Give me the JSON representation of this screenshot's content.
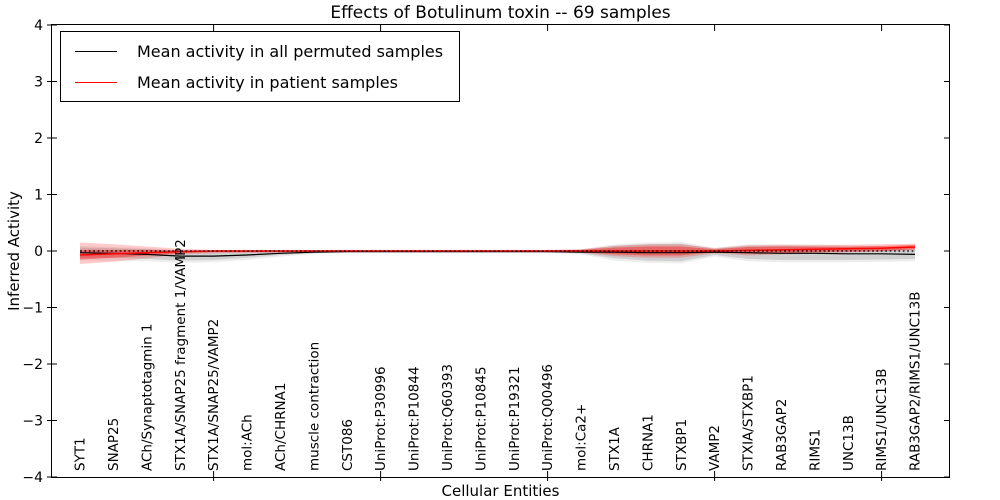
{
  "figure": {
    "title": "Effects of Botulinum toxin -- 69 samples",
    "xlabel": "Cellular Entities",
    "ylabel": "Inferred Activity"
  },
  "chart_data": {
    "type": "line",
    "title": "Effects of Botulinum toxin -- 69 samples",
    "xlabel": "Cellular Entities",
    "ylabel": "Inferred Activity",
    "ylim": [
      -4,
      4
    ],
    "ytick_values": [
      4,
      3,
      2,
      1,
      0,
      -1,
      -2,
      -3,
      -4
    ],
    "ytick_labels": [
      "4",
      "3",
      "2",
      "1",
      "0",
      "−1",
      "−2",
      "−3",
      "−4"
    ],
    "xticks_at_category_index": [
      4,
      9,
      14,
      19,
      24
    ],
    "grid": false,
    "legend_position": "upper left",
    "categories": [
      "SYT1",
      "SNAP25",
      "ACh/Synaptotagmin 1",
      "STX1A/SNAP25 fragment 1/VAMP2",
      "STX1A/SNAP25/VAMP2",
      "mol:ACh",
      "ACh/CHRNA1",
      "muscle contraction",
      "CST086",
      "UniProt:P30996",
      "UniProt:P10844",
      "UniProt:Q60393",
      "UniProt:P10845",
      "UniProt:P19321",
      "UniProt:Q00496",
      "mol:Ca2+",
      "STX1A",
      "CHRNA1",
      "STXBP1",
      "VAMP2",
      "STXIA/STXBP1",
      "RAB3GAP2",
      "RIMS1",
      "UNC13B",
      "RIMS1/UNC13B",
      "RAB3GAP2/RIMS1/UNC13B"
    ],
    "series": [
      {
        "name": "Mean activity in all permuted samples",
        "color": "#000000",
        "width": 1.2,
        "values": [
          -0.03,
          -0.04,
          -0.06,
          -0.09,
          -0.09,
          -0.07,
          -0.04,
          -0.02,
          -0.01,
          -0.01,
          -0.01,
          -0.01,
          -0.01,
          -0.01,
          -0.01,
          -0.02,
          -0.02,
          -0.03,
          -0.03,
          -0.02,
          -0.03,
          -0.04,
          -0.04,
          -0.05,
          -0.05,
          -0.06
        ]
      },
      {
        "name": "Mean activity in patient samples",
        "color": "#ff0000",
        "width": 1.5,
        "values": [
          -0.07,
          -0.05,
          -0.03,
          -0.01,
          0,
          0,
          0,
          0,
          0,
          0,
          0,
          0,
          0,
          0,
          0,
          0,
          0,
          0,
          0,
          0,
          0.01,
          0.02,
          0.03,
          0.04,
          0.05,
          0.07
        ]
      }
    ],
    "bands": [
      {
        "name": "permuted-ci-outer",
        "color": "#000000",
        "opacity": 0.07,
        "low": [
          -0.17,
          -0.17,
          -0.18,
          -0.21,
          -0.2,
          -0.16,
          -0.1,
          -0.05,
          -0.03,
          -0.03,
          -0.03,
          -0.03,
          -0.03,
          -0.03,
          -0.03,
          -0.06,
          -0.17,
          -0.21,
          -0.22,
          -0.1,
          -0.18,
          -0.2,
          -0.2,
          -0.2,
          -0.19,
          -0.18
        ],
        "high": [
          0.09,
          0.07,
          0.05,
          0.02,
          0.01,
          0.01,
          0.01,
          0.01,
          0.02,
          0.02,
          0.02,
          0.02,
          0.02,
          0.02,
          0.02,
          0.03,
          0.12,
          0.15,
          0.16,
          0.06,
          0.12,
          0.12,
          0.11,
          0.1,
          0.08,
          0.06
        ]
      },
      {
        "name": "permuted-ci",
        "color": "#000000",
        "opacity": 0.12,
        "low": [
          -0.12,
          -0.12,
          -0.14,
          -0.17,
          -0.16,
          -0.12,
          -0.07,
          -0.04,
          -0.02,
          -0.02,
          -0.02,
          -0.02,
          -0.02,
          -0.02,
          -0.02,
          -0.04,
          -0.13,
          -0.17,
          -0.18,
          -0.07,
          -0.14,
          -0.16,
          -0.16,
          -0.16,
          -0.15,
          -0.14
        ],
        "high": [
          0.06,
          0.05,
          0.03,
          0.01,
          0,
          0,
          0,
          0,
          0.01,
          0.01,
          0.01,
          0.01,
          0.01,
          0.01,
          0.01,
          0.02,
          0.09,
          0.12,
          0.13,
          0.04,
          0.09,
          0.09,
          0.08,
          0.07,
          0.06,
          0.04
        ]
      },
      {
        "name": "patient-ci-outer",
        "color": "#ff0000",
        "opacity": 0.2,
        "low": [
          -0.23,
          -0.19,
          -0.13,
          -0.06,
          -0.04,
          -0.03,
          -0.03,
          -0.02,
          -0.02,
          -0.02,
          -0.02,
          -0.02,
          -0.02,
          -0.02,
          -0.02,
          -0.03,
          -0.09,
          -0.12,
          -0.12,
          -0.04,
          -0.08,
          -0.06,
          -0.04,
          -0.02,
          -0.01,
          0.02
        ],
        "high": [
          0.15,
          0.12,
          0.08,
          0.04,
          0.02,
          0.02,
          0.02,
          0.02,
          0.02,
          0.02,
          0.02,
          0.02,
          0.02,
          0.02,
          0.02,
          0.03,
          0.09,
          0.12,
          0.12,
          0.05,
          0.1,
          0.11,
          0.11,
          0.11,
          0.12,
          0.13
        ]
      },
      {
        "name": "patient-ci",
        "color": "#ff0000",
        "opacity": 0.38,
        "low": [
          -0.15,
          -0.12,
          -0.08,
          -0.04,
          -0.02,
          -0.02,
          -0.02,
          -0.01,
          -0.01,
          -0.01,
          -0.01,
          -0.01,
          -0.01,
          -0.01,
          -0.01,
          -0.02,
          -0.06,
          -0.08,
          -0.08,
          -0.02,
          -0.05,
          -0.04,
          -0.02,
          -0.01,
          0,
          0.03
        ],
        "high": [
          0.02,
          0.02,
          0.02,
          0.01,
          0.01,
          0.01,
          0.01,
          0.01,
          0.01,
          0.01,
          0.01,
          0.01,
          0.01,
          0.01,
          0.01,
          0.02,
          0.06,
          0.08,
          0.08,
          0.03,
          0.07,
          0.08,
          0.08,
          0.08,
          0.09,
          0.11
        ]
      }
    ],
    "reference_line": {
      "y": 0,
      "style": "dashed",
      "color": "#000000"
    }
  }
}
